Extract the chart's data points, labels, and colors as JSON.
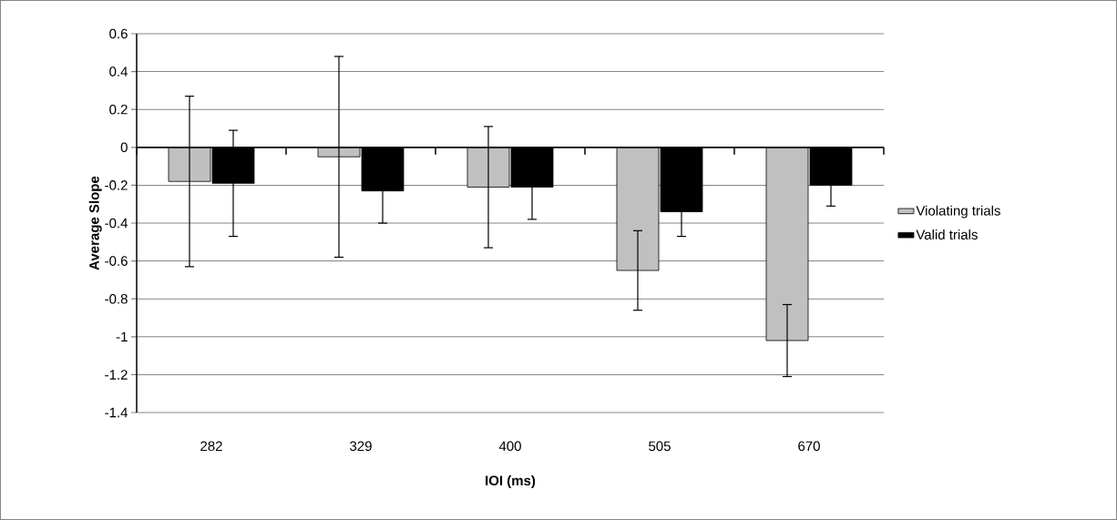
{
  "chart_data": {
    "type": "bar",
    "xlabel": "IOI (ms)",
    "ylabel": "Average Slope",
    "categories": [
      "282",
      "329",
      "400",
      "505",
      "670"
    ],
    "series": [
      {
        "name": "Violating trials",
        "color": "#c0c0c0",
        "values": [
          -0.18,
          -0.05,
          -0.21,
          -0.65,
          -1.02
        ],
        "errors": [
          0.45,
          0.53,
          0.32,
          0.21,
          0.19
        ]
      },
      {
        "name": "Valid trials",
        "color": "#000000",
        "values": [
          -0.19,
          -0.23,
          -0.21,
          -0.34,
          -0.2
        ],
        "errors": [
          0.28,
          0.17,
          0.17,
          0.13,
          0.11
        ]
      }
    ],
    "ylim": [
      -1.4,
      0.6
    ],
    "yticks": [
      -1.4,
      -1.2,
      -1,
      -0.8,
      -0.6,
      -0.4,
      -0.2,
      0,
      0.2,
      0.4,
      0.6
    ],
    "grid": "y",
    "legend": "right"
  }
}
